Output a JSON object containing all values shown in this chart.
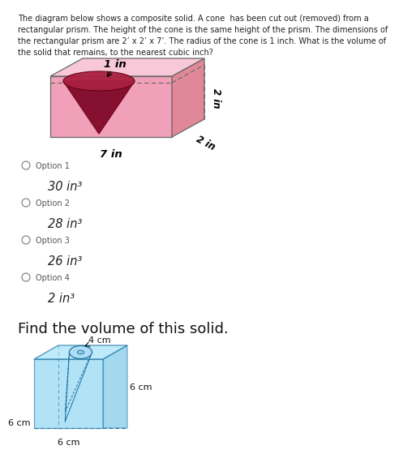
{
  "bg_color": "#ffffff",
  "top_text_lines": [
    "The diagram below shows a composite solid. A cone  has been cut out (removed) from a",
    "rectangular prism. The height of the cone is the same height of the prism. The dimensions of",
    "the rectangular prism are 2’ x 2’ x 7’. The radius of the cone is 1 inch. What is the volume of",
    "the solid that remains, to the nearest cubic inch?"
  ],
  "prism_label_top": "1 in",
  "prism_label_right_vert": "2 in",
  "prism_label_right_diag": "2 in",
  "prism_label_bottom": "7 in",
  "option1_label": "Option 1",
  "option1_value": "30 in³",
  "option2_label": "Option 2",
  "option2_value": "28 in³",
  "option3_label": "Option 3",
  "option3_value": "26 in³",
  "option4_label": "Option 4",
  "option4_value": "2 in³",
  "find_volume_text": "Find the volume of this solid.",
  "cube_label_top": "4 cm",
  "cube_label_right": "6 cm",
  "cube_label_front_bottom": "6 cm",
  "cube_label_left": "6 cm",
  "prism_front_color": "#f0a0b8",
  "prism_top_color": "#f8c8d8",
  "prism_right_color": "#e08898",
  "prism_edge_color": "#666666",
  "cone_fill_color": "#7a0020",
  "cone_top_color": "#aa2040",
  "cube_front_color": "#7ecfef",
  "cube_top_color": "#a8e4f8",
  "cube_right_color": "#5ab8e0",
  "cube_edge_color": "#1a6fa0",
  "text_color": "#222222",
  "option_label_color": "#555555",
  "option_circle_color": "#888888"
}
